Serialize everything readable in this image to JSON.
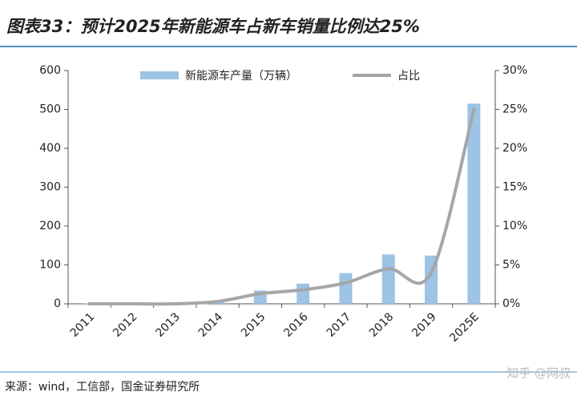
{
  "chart_data": {
    "type": "bar-line",
    "title": "图表33：预计2025年新能源车占新车销量比例达25%",
    "categories": [
      "2011",
      "2012",
      "2013",
      "2014",
      "2015",
      "2016",
      "2017",
      "2018",
      "2019",
      "2025E"
    ],
    "series": [
      {
        "name": "新能源车产量（万辆）",
        "type": "bar",
        "color": "#9dc3e6",
        "values": [
          0.8,
          1.3,
          1.8,
          7.8,
          34,
          52,
          79,
          127,
          124,
          515
        ]
      },
      {
        "name": "占比",
        "type": "line",
        "axis": "y2",
        "color": "#a6a6a6",
        "values": [
          0,
          0,
          0,
          0.3,
          1.3,
          1.8,
          2.7,
          4.5,
          4.0,
          25
        ]
      }
    ],
    "ylim": [
      0,
      600
    ],
    "yticks": [
      0,
      100,
      200,
      300,
      400,
      500,
      600
    ],
    "y2lim": [
      0,
      30
    ],
    "y2ticks": [
      {
        "value": 0,
        "label": "0%"
      },
      {
        "value": 5,
        "label": "5%"
      },
      {
        "value": 10,
        "label": "10%"
      },
      {
        "value": 15,
        "label": "15%"
      },
      {
        "value": 20,
        "label": "20%"
      },
      {
        "value": 25,
        "label": "25%"
      },
      {
        "value": 30,
        "label": "30%"
      }
    ],
    "grid": false,
    "legend": "top",
    "source": "来源：wind，工信部，国金证券研究所",
    "watermark": "知乎 @网叔"
  }
}
